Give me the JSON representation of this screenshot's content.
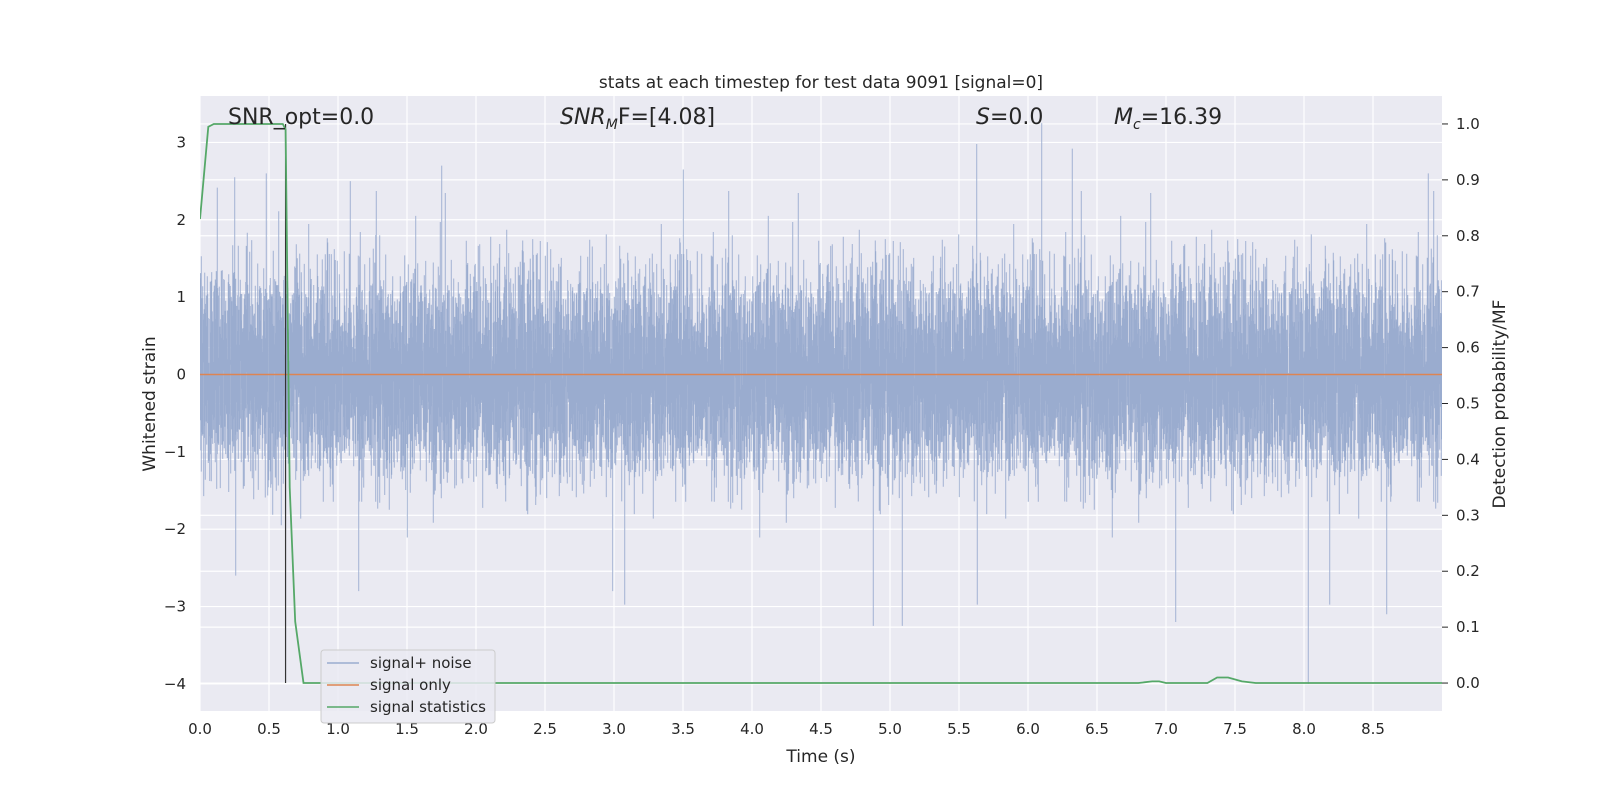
{
  "chart_data": {
    "type": "line",
    "title": "stats at each timestep for test data 9091 [signal=0]",
    "xlabel": "Time (s)",
    "ylabel": "Whitened strain",
    "ylabel_right": "Detection probability/MF",
    "xlim": [
      0,
      9.0
    ],
    "ylim": [
      -4.35,
      3.6
    ],
    "ylim_right": [
      -0.05,
      1.05
    ],
    "x_ticks": [
      0.0,
      0.5,
      1.0,
      1.5,
      2.0,
      2.5,
      3.0,
      3.5,
      4.0,
      4.5,
      5.0,
      5.5,
      6.0,
      6.5,
      7.0,
      7.5,
      8.0,
      8.5
    ],
    "x_tick_labels": [
      "0.0",
      "0.5",
      "1.0",
      "1.5",
      "2.0",
      "2.5",
      "3.0",
      "3.5",
      "4.0",
      "4.5",
      "5.0",
      "5.5",
      "6.0",
      "6.5",
      "7.0",
      "7.5",
      "8.0",
      "8.5"
    ],
    "y_ticks": [
      -4,
      -3,
      -2,
      -1,
      0,
      1,
      2,
      3
    ],
    "y_tick_labels": [
      "−4",
      "−3",
      "−2",
      "−1",
      "0",
      "1",
      "2",
      "3"
    ],
    "y_right_ticks": [
      0.0,
      0.1,
      0.2,
      0.3,
      0.4,
      0.5,
      0.6,
      0.7,
      0.8,
      0.9,
      1.0
    ],
    "y_right_tick_labels": [
      "0.0",
      "0.1",
      "0.2",
      "0.3",
      "0.4",
      "0.5",
      "0.6",
      "0.7",
      "0.8",
      "0.9",
      "1.0"
    ],
    "grid": true,
    "legend_position": "lower-left",
    "annotations": {
      "snr_opt": "SNR_opt=0.0",
      "snr_mf_sym": "SNR",
      "snr_mf_sub": "M",
      "snr_mf_rest": "F=[4.08]",
      "s_sym": "S",
      "s_rest": "=0.0",
      "mc_sym": "M",
      "mc_sub": "c",
      "mc_rest": "=16.39"
    },
    "series": [
      {
        "name": "signal+ noise",
        "color": "#9aaccf",
        "kind": "noise",
        "sample_rate": 2048,
        "typical_amplitude": 1.0,
        "notable_peaks": [
          [
            0.25,
            2.55
          ],
          [
            0.48,
            2.6
          ],
          [
            1.09,
            2.5
          ],
          [
            1.75,
            2.7
          ],
          [
            3.5,
            2.65
          ],
          [
            5.63,
            2.98
          ],
          [
            6.1,
            3.25
          ],
          [
            6.32,
            2.92
          ],
          [
            8.9,
            2.6
          ],
          [
            0.26,
            -2.6
          ],
          [
            1.15,
            -2.8
          ],
          [
            2.99,
            -2.8
          ],
          [
            4.88,
            -3.25
          ],
          [
            5.09,
            -3.25
          ],
          [
            7.07,
            -3.2
          ],
          [
            8.03,
            -4.0
          ],
          [
            8.6,
            -3.1
          ]
        ]
      },
      {
        "name": "signal only",
        "color": "#dd8452",
        "x": [
          0.0,
          9.0
        ],
        "y": [
          0.0,
          0.0
        ]
      },
      {
        "name": "signal statistics",
        "color": "#55a868",
        "axis": "right",
        "x": [
          0.0,
          0.06,
          0.1,
          0.2,
          0.3,
          0.4,
          0.5,
          0.6,
          0.62,
          0.65,
          0.69,
          0.75,
          1.0,
          2.0,
          3.0,
          4.0,
          5.0,
          6.0,
          6.5,
          6.8,
          6.9,
          6.95,
          7.0,
          7.3,
          7.37,
          7.45,
          7.55,
          7.65,
          8.0,
          8.5,
          9.0
        ],
        "y": [
          0.83,
          0.995,
          1.0,
          1.0,
          1.0,
          1.0,
          1.0,
          1.0,
          0.99,
          0.35,
          0.11,
          0.0,
          0.0,
          0.0,
          0.0,
          0.0,
          0.0,
          0.0,
          0.0,
          0.0,
          0.003,
          0.003,
          0.0,
          0.0,
          0.01,
          0.01,
          0.003,
          0.0,
          0.0,
          0.0,
          0.0
        ]
      },
      {
        "name": "",
        "color": "#333333",
        "kind": "vertical-marker",
        "x": [
          0.62,
          0.62
        ],
        "y_right": [
          0.0,
          1.0
        ]
      }
    ]
  }
}
